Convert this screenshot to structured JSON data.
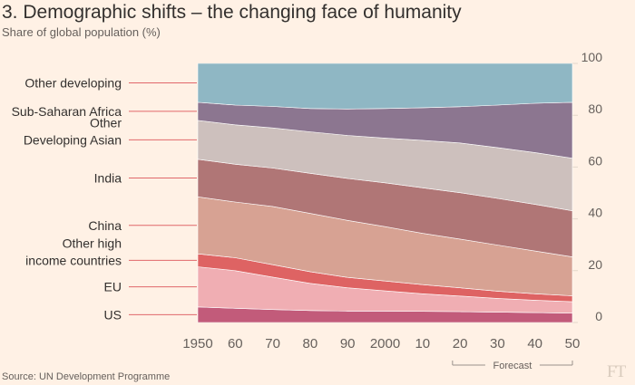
{
  "title": "3. Demographic shifts – the changing face of humanity",
  "subtitle": "Share of global population (%)",
  "source": "Source: UN Development Programme",
  "logo": "FT",
  "chart_data": {
    "type": "area",
    "stacked": true,
    "title": "3. Demographic shifts – the changing face of humanity",
    "ylabel": "Share of global population (%)",
    "ylim": [
      0,
      100
    ],
    "yticks": [
      0,
      20,
      40,
      60,
      80,
      100
    ],
    "x": [
      1950,
      1960,
      1970,
      1980,
      1990,
      2000,
      2010,
      2020,
      2030,
      2040,
      2050
    ],
    "xlim": [
      1950,
      2050
    ],
    "xtick_labels": [
      "1950",
      "60",
      "70",
      "80",
      "90",
      "2000",
      "10",
      "20",
      "30",
      "40",
      "50"
    ],
    "forecast": {
      "label": "Forecast",
      "from": 2018,
      "to": 2050
    },
    "series": [
      {
        "name": "US",
        "color": "#c25b7a",
        "values": [
          6.0,
          5.5,
          5.0,
          4.6,
          4.4,
          4.4,
          4.3,
          4.2,
          4.0,
          3.8,
          3.6
        ]
      },
      {
        "name": "EU",
        "color": "#f0aeb3",
        "values": [
          15.5,
          14.5,
          12.5,
          10.5,
          9.0,
          7.8,
          6.8,
          6.0,
          5.3,
          4.8,
          4.4
        ]
      },
      {
        "name": "Other high income countries",
        "color": "#de6363",
        "values": [
          5.0,
          5.0,
          4.8,
          4.5,
          4.0,
          3.8,
          3.5,
          3.2,
          2.8,
          2.5,
          2.3
        ]
      },
      {
        "name": "China",
        "color": "#d7a293",
        "values": [
          22.0,
          21.5,
          22.5,
          22.5,
          22.0,
          21.0,
          19.8,
          18.8,
          17.8,
          16.5,
          15.0
        ]
      },
      {
        "name": "India",
        "color": "#b07676",
        "values": [
          14.5,
          14.6,
          14.8,
          15.5,
          16.2,
          16.9,
          17.6,
          17.9,
          18.0,
          18.0,
          17.8
        ]
      },
      {
        "name": "Other Developing Asian",
        "color": "#cdc0bd",
        "values": [
          15.0,
          15.2,
          15.5,
          16.0,
          16.6,
          17.3,
          18.3,
          19.2,
          19.6,
          20.0,
          20.3
        ]
      },
      {
        "name": "Sub-Saharan Africa",
        "color": "#8c7690",
        "values": [
          7.0,
          7.6,
          8.3,
          9.0,
          10.2,
          11.4,
          12.6,
          14.0,
          16.4,
          19.0,
          21.6
        ]
      },
      {
        "name": "Other developing",
        "color": "#8fb7c4",
        "values": [
          15.0,
          16.1,
          16.6,
          17.4,
          17.6,
          17.4,
          17.1,
          16.7,
          16.1,
          15.4,
          15.0
        ]
      }
    ],
    "left_labels": [
      {
        "series": "Other developing",
        "lines": [
          "Other developing"
        ]
      },
      {
        "series": "Sub-Saharan Africa",
        "lines": [
          "Sub-Saharan Africa"
        ]
      },
      {
        "series": "Other Developing Asian",
        "lines": [
          "Other",
          "Developing Asian"
        ]
      },
      {
        "series": "India",
        "lines": [
          "India"
        ]
      },
      {
        "series": "China",
        "lines": [
          "China"
        ]
      },
      {
        "series": "Other high income countries",
        "lines": [
          "Other high",
          "income countries"
        ]
      },
      {
        "series": "EU",
        "lines": [
          "EU"
        ]
      },
      {
        "series": "US",
        "lines": [
          "US"
        ]
      }
    ]
  }
}
